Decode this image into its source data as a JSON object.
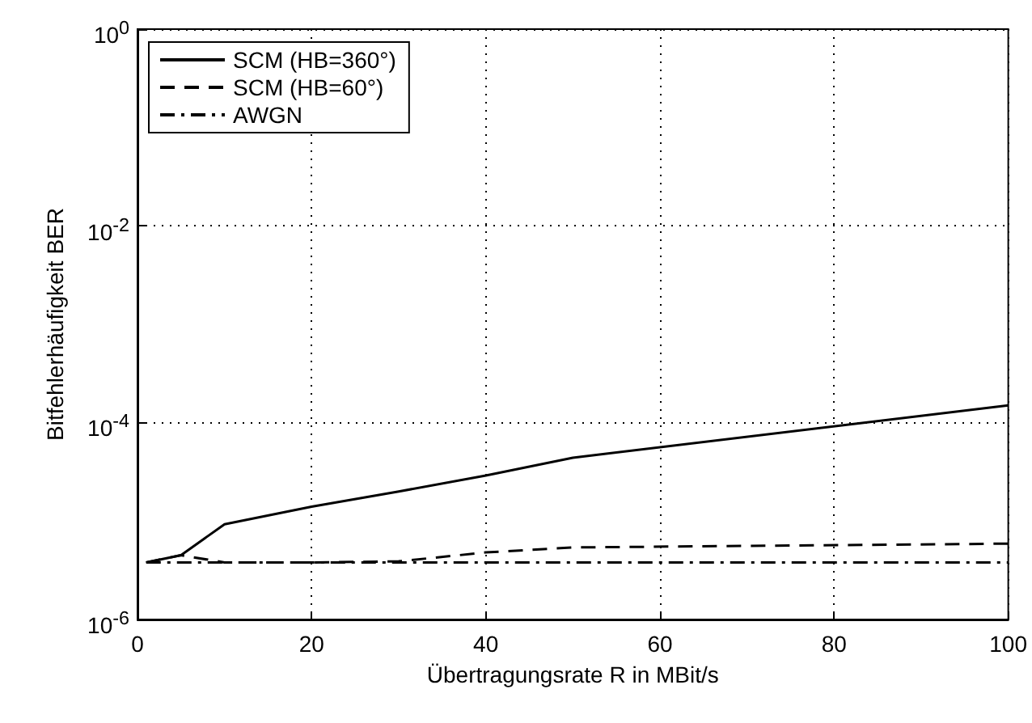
{
  "chart_data": {
    "type": "line",
    "xlabel": "Übertragungsrate R in MBit/s",
    "ylabel": "Bitfehlerhäufigkeit BER",
    "x": [
      1,
      5,
      10,
      20,
      30,
      40,
      50,
      100
    ],
    "series": [
      {
        "name": "SCM (HB=360°)",
        "color": "#000000",
        "line_style": "solid",
        "values": [
          3.8e-06,
          4.5e-06,
          9.3e-06,
          1.4e-05,
          2e-05,
          2.9e-05,
          4.4e-05,
          0.00015
        ]
      },
      {
        "name": "SCM (HB=60°)",
        "color": "#000000",
        "line_style": "dashed",
        "values": [
          3.8e-06,
          4.5e-06,
          3.8e-06,
          3.8e-06,
          3.9e-06,
          4.8e-06,
          5.4e-06,
          5.9e-06
        ]
      },
      {
        "name": "AWGN",
        "color": "#000000",
        "line_style": "dashdot",
        "values": [
          3.8e-06,
          3.8e-06,
          3.8e-06,
          3.8e-06,
          3.8e-06,
          3.8e-06,
          3.8e-06,
          3.8e-06
        ]
      }
    ],
    "xlim": [
      0,
      100
    ],
    "xticks": [
      0,
      20,
      40,
      60,
      80,
      100
    ],
    "ylim": [
      1e-06,
      1
    ],
    "yticks": [
      {
        "value": 1e-06,
        "label": "10$^{-6}$"
      },
      {
        "value": 0.0001,
        "label": "10$^{-4}$"
      },
      {
        "value": 0.01,
        "label": "10$^{-2}$"
      },
      {
        "value": 1,
        "label": "10$^{0}$"
      }
    ],
    "log": "y",
    "grid": true,
    "legend": "top left",
    "marker": "none"
  }
}
